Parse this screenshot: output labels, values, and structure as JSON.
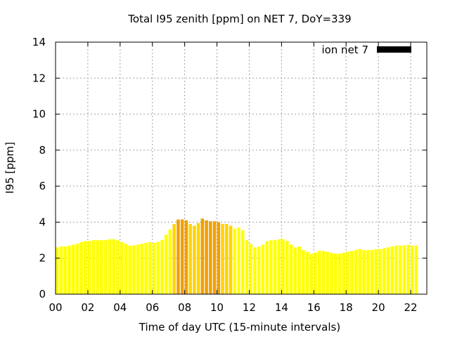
{
  "chart_data": {
    "type": "bar",
    "title": "Total I95 zenith [ppm] on NET 7, DoY=339",
    "xlabel": "Time of day UTC (15-minute intervals)",
    "ylabel": "I95 [ppm]",
    "xlim": [
      0,
      23
    ],
    "ylim": [
      0,
      14
    ],
    "x_ticks": [
      "00",
      "02",
      "04",
      "06",
      "08",
      "10",
      "12",
      "14",
      "16",
      "18",
      "20",
      "22"
    ],
    "y_ticks": [
      "0",
      "2",
      "4",
      "6",
      "8",
      "10",
      "12",
      "14"
    ],
    "grid": true,
    "legend": {
      "position": "top-right",
      "label": "ion net 7",
      "color": "#000000"
    },
    "bar_interval_hours": 0.25,
    "colors": {
      "low": "#ffff00",
      "mid": "#ffd400",
      "high": "#f0a000"
    },
    "values": [
      2.6,
      2.65,
      2.65,
      2.7,
      2.75,
      2.8,
      2.9,
      2.95,
      2.95,
      3.0,
      3.0,
      3.0,
      3.0,
      3.05,
      3.05,
      3.0,
      2.9,
      2.8,
      2.7,
      2.7,
      2.75,
      2.8,
      2.85,
      2.9,
      2.85,
      2.9,
      3.0,
      3.3,
      3.6,
      3.9,
      4.15,
      4.15,
      4.1,
      3.9,
      3.8,
      3.95,
      4.2,
      4.1,
      4.05,
      4.05,
      4.0,
      3.9,
      3.9,
      3.8,
      3.65,
      3.7,
      3.55,
      3.0,
      2.8,
      2.6,
      2.65,
      2.75,
      2.95,
      3.0,
      3.0,
      3.05,
      3.05,
      2.95,
      2.75,
      2.6,
      2.65,
      2.45,
      2.35,
      2.25,
      2.3,
      2.4,
      2.4,
      2.35,
      2.3,
      2.25,
      2.25,
      2.3,
      2.35,
      2.4,
      2.45,
      2.5,
      2.45,
      2.45,
      2.45,
      2.5,
      2.5,
      2.55,
      2.6,
      2.65,
      2.7,
      2.7,
      2.7,
      2.75,
      2.7,
      2.7
    ]
  }
}
